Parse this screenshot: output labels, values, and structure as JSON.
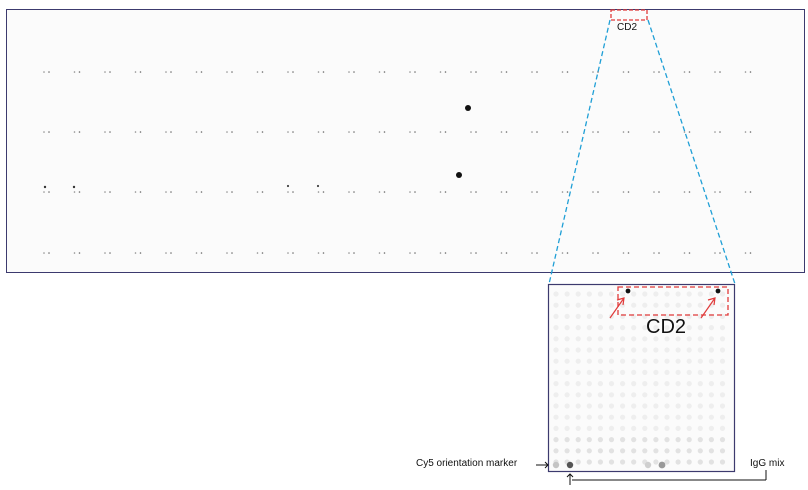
{
  "labels": {
    "cd2_small": "CD2",
    "cd2_large": "CD2",
    "cy5_marker": "Cy5 orientation marker",
    "igg_mix": "IgG mix"
  },
  "colors": {
    "frame": "#3c3a6e",
    "zoom_lines": "#1f9fd6",
    "highlight": "#e03a3a",
    "spot": "#111111",
    "faint_spot": "#9a9a9a"
  },
  "panels": {
    "overview": {
      "rows": 4,
      "columns": 24,
      "style": "full-slide scan"
    },
    "zoom": {
      "grid": "16x16",
      "style": "magnified sub-array"
    }
  }
}
